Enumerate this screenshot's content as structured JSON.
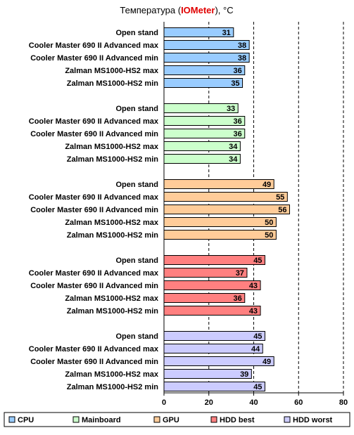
{
  "chart_data": {
    "type": "bar",
    "orientation": "horizontal",
    "title": {
      "before": "Температура (",
      "accent": "IOMeter",
      "after": "), °C",
      "accent_color": "#e00000"
    },
    "xlim": [
      0,
      80
    ],
    "xticks": [
      0,
      20,
      40,
      60,
      80
    ],
    "grid": "dashed vertical",
    "legend_position": "bottom",
    "groups": [
      {
        "name": "CPU",
        "color": "#99ccff",
        "categories": [
          "Open stand",
          "Cooler Master 690 II Advanced max",
          "Cooler Master 690 II Advanced min",
          "Zalman MS1000-HS2 max",
          "Zalman MS1000-HS2 min"
        ],
        "values": [
          31,
          38,
          38,
          36,
          35
        ]
      },
      {
        "name": "Mainboard",
        "color": "#ccffcc",
        "categories": [
          "Open stand",
          "Cooler Master 690 II Advanced max",
          "Cooler Master 690 II Advanced min",
          "Zalman MS1000-HS2 max",
          "Zalman MS1000-HS2 min"
        ],
        "values": [
          33,
          36,
          36,
          34,
          34
        ]
      },
      {
        "name": "GPU",
        "color": "#ffcc99",
        "categories": [
          "Open stand",
          "Cooler Master 690 II Advanced max",
          "Cooler Master 690 II Advanced min",
          "Zalman MS1000-HS2 max",
          "Zalman MS1000-HS2 min"
        ],
        "values": [
          49,
          55,
          56,
          50,
          50
        ]
      },
      {
        "name": "HDD best",
        "color": "#ff8080",
        "categories": [
          "Open stand",
          "Cooler Master 690 II Advanced max",
          "Cooler Master 690 II Advanced min",
          "Zalman MS1000-HS2 max",
          "Zalman MS1000-HS2 min"
        ],
        "values": [
          45,
          37,
          43,
          36,
          43
        ]
      },
      {
        "name": "HDD worst",
        "color": "#ccccff",
        "categories": [
          "Open stand",
          "Cooler Master 690 II Advanced max",
          "Cooler Master 690 II Advanced min",
          "Zalman MS1000-HS2 max",
          "Zalman MS1000-HS2 min"
        ],
        "values": [
          45,
          44,
          49,
          39,
          45
        ]
      }
    ]
  }
}
